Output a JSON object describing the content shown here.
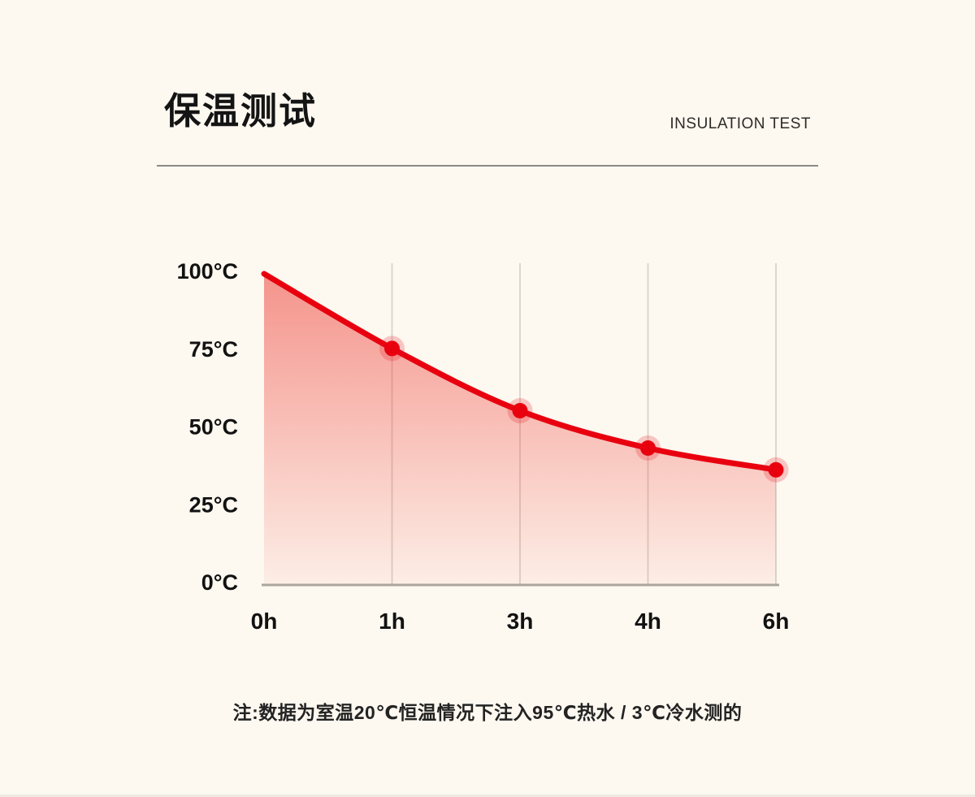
{
  "page": {
    "background": "#fdf8f0"
  },
  "header": {
    "title": "保温测试",
    "subtitle": "INSULATION TEST"
  },
  "chart_data": {
    "type": "area",
    "title": "保温测试 INSULATION TEST",
    "categories": [
      "0h",
      "1h",
      "3h",
      "4h",
      "6h"
    ],
    "values": [
      100,
      76,
      56,
      44,
      37
    ],
    "xlabel": "",
    "ylabel": "",
    "ylim": [
      0,
      100
    ],
    "y_ticks": [
      "0°C",
      "25°C",
      "50°C",
      "75°C",
      "100°C"
    ],
    "y_tick_values": [
      0,
      25,
      50,
      75,
      100
    ],
    "grid": "vertical-at-categories-1-to-4",
    "legend": "none",
    "marker_indices": [
      1,
      2,
      3,
      4
    ],
    "colors": {
      "line": "#e8000f",
      "marker": "#e8000f",
      "marker_halo": "rgba(232,20,30,0.22)",
      "fill_top": "rgba(236,48,40,0.50)",
      "fill_bottom": "rgba(236,48,40,0.05)",
      "gridline": "#ddd6ce",
      "axis_line": "#aba59e",
      "tick_text": "#121212"
    }
  },
  "footer": {
    "note": "注:数据为室温20℃恒温情况下注入95℃热水 / 3℃冷水测的"
  }
}
